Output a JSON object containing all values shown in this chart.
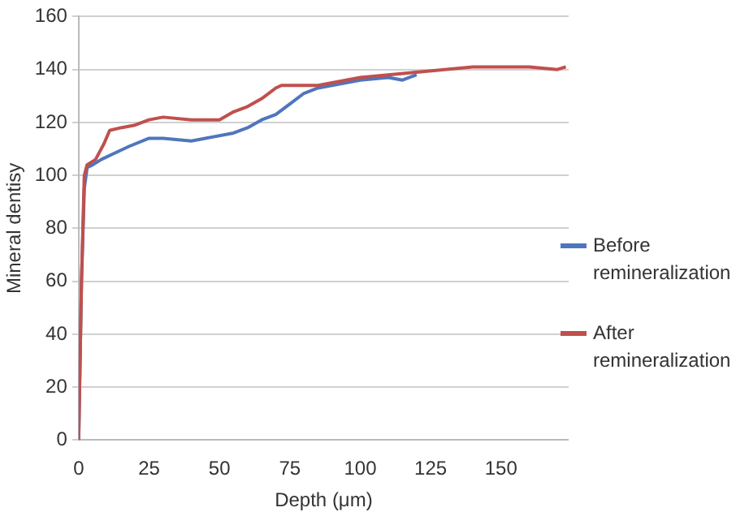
{
  "chart_data": {
    "type": "line",
    "xlabel": "Depth (μm)",
    "ylabel": "Mineral dentisy",
    "xlim": [
      0,
      174
    ],
    "xticks": [
      0,
      25,
      50,
      75,
      100,
      125,
      150
    ],
    "ylim": [
      0,
      160
    ],
    "yticks": [
      0,
      20,
      40,
      60,
      80,
      100,
      120,
      140,
      160
    ],
    "grid": "y",
    "legend": "right",
    "marker": "none",
    "line_style": "solid",
    "series": [
      {
        "name": "Before remineralization",
        "color": "#4f76bd",
        "x": [
          0,
          1,
          2,
          3,
          5,
          8,
          12,
          18,
          25,
          30,
          40,
          45,
          55,
          60,
          65,
          70,
          75,
          80,
          85,
          90,
          95,
          100,
          110,
          115,
          120
        ],
        "values": [
          0,
          60,
          95,
          103,
          104,
          106,
          108,
          111,
          114,
          114,
          113,
          114,
          116,
          118,
          121,
          123,
          127,
          131,
          133,
          134,
          135,
          136,
          137,
          136,
          138
        ]
      },
      {
        "name": "After remineralization",
        "color": "#c0504d",
        "x": [
          0,
          1,
          2,
          3,
          6,
          9,
          11,
          15,
          20,
          25,
          30,
          40,
          50,
          55,
          60,
          65,
          70,
          72,
          80,
          85,
          90,
          95,
          100,
          110,
          120,
          130,
          140,
          150,
          160,
          170,
          173
        ],
        "values": [
          0,
          60,
          100,
          104,
          106,
          112,
          117,
          118,
          119,
          121,
          122,
          121,
          121,
          124,
          126,
          129,
          133,
          134,
          134,
          134,
          135,
          136,
          137,
          138,
          139,
          140,
          141,
          141,
          141,
          140,
          141
        ]
      }
    ]
  }
}
